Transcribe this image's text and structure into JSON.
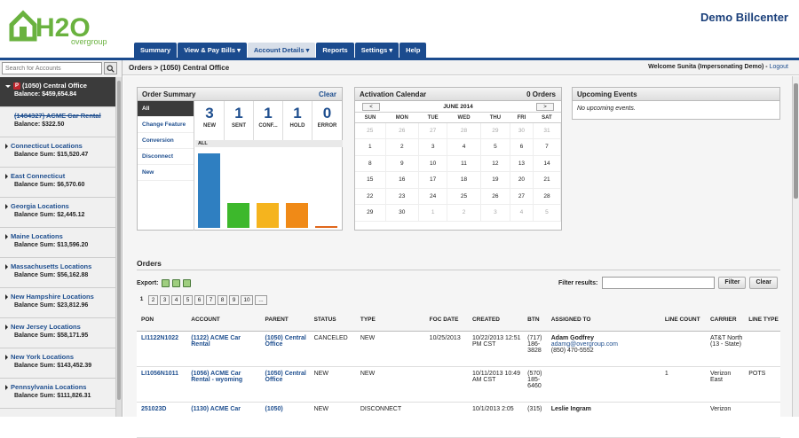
{
  "header": {
    "logo_text": "H2O",
    "logo_sub": "overgroup",
    "title": "Demo Billcenter"
  },
  "nav": {
    "tabs": [
      "Summary",
      "View & Pay Bills ▾",
      "Account Details ▾",
      "Reports",
      "Settings ▾",
      "Help"
    ],
    "active": "Account Details ▾"
  },
  "sidebar": {
    "search_placeholder": "Search for Accounts",
    "accounts": [
      {
        "name": "(1050) Central Office",
        "balance": "Balance: $459,654.84",
        "flag": "P",
        "selected": true
      },
      {
        "name": "(1484327) ACME Car Rental",
        "balance": "Balance: $322.50",
        "struck": true
      },
      {
        "name": "Connecticut Locations",
        "balance": "Balance Sum: $15,520.47"
      },
      {
        "name": "East Connecticut",
        "balance": "Balance Sum: $6,570.60"
      },
      {
        "name": "Georgia Locations",
        "balance": "Balance Sum: $2,445.12"
      },
      {
        "name": "Maine Locations",
        "balance": "Balance Sum: $13,596.20"
      },
      {
        "name": "Massachusetts Locations",
        "balance": "Balance Sum: $56,162.88"
      },
      {
        "name": "New Hampshire Locations",
        "balance": "Balance Sum: $23,812.96"
      },
      {
        "name": "New Jersey Locations",
        "balance": "Balance Sum: $58,171.95"
      },
      {
        "name": "New York Locations",
        "balance": "Balance Sum: $143,452.39"
      },
      {
        "name": "Pennsylvania Locations",
        "balance": "Balance Sum: $111,826.31"
      }
    ]
  },
  "breadcrumb": {
    "text": "Orders > (1050) Central Office",
    "welcome": "Welcome Sunita (Impersonating Demo) -",
    "logout": "Logout"
  },
  "order_summary": {
    "title": "Order Summary",
    "clear": "Clear",
    "filters": [
      "All",
      "Change Feature",
      "Conversion",
      "Disconnect",
      "New"
    ],
    "stats": [
      {
        "count": "3",
        "label": "NEW"
      },
      {
        "count": "1",
        "label": "SENT"
      },
      {
        "count": "1",
        "label": "CONF..."
      },
      {
        "count": "1",
        "label": "HOLD"
      },
      {
        "count": "0",
        "label": "ERROR"
      }
    ],
    "all_label": "ALL"
  },
  "chart_data": {
    "type": "bar",
    "categories": [
      "NEW",
      "SENT",
      "CONF...",
      "HOLD",
      "ERROR"
    ],
    "values": [
      3,
      1,
      1,
      1,
      0
    ],
    "colors": [
      "#2f7fc1",
      "#3db82c",
      "#f5b41e",
      "#f08a17",
      "#e0671b"
    ],
    "ylim": [
      0,
      3
    ],
    "grid": false
  },
  "calendar": {
    "title": "Activation Calendar",
    "orders": "0 Orders",
    "month": "JUNE 2014",
    "prev": "<",
    "next": ">",
    "days": [
      "SUN",
      "MON",
      "TUE",
      "WED",
      "THU",
      "FRI",
      "SAT"
    ],
    "weeks": [
      [
        [
          "25",
          1
        ],
        [
          "26",
          1
        ],
        [
          "27",
          1
        ],
        [
          "28",
          1
        ],
        [
          "29",
          1
        ],
        [
          "30",
          1
        ],
        [
          "31",
          1
        ]
      ],
      [
        [
          "1",
          0
        ],
        [
          "2",
          0
        ],
        [
          "3",
          0
        ],
        [
          "4",
          0
        ],
        [
          "5",
          0
        ],
        [
          "6",
          0
        ],
        [
          "7",
          0
        ]
      ],
      [
        [
          "8",
          0
        ],
        [
          "9",
          0
        ],
        [
          "10",
          0
        ],
        [
          "11",
          0
        ],
        [
          "12",
          0
        ],
        [
          "13",
          0
        ],
        [
          "14",
          0
        ]
      ],
      [
        [
          "15",
          0
        ],
        [
          "16",
          0
        ],
        [
          "17",
          0
        ],
        [
          "18",
          0
        ],
        [
          "19",
          0
        ],
        [
          "20",
          0
        ],
        [
          "21",
          0
        ]
      ],
      [
        [
          "22",
          0
        ],
        [
          "23",
          0
        ],
        [
          "24",
          0
        ],
        [
          "25",
          0
        ],
        [
          "26",
          0
        ],
        [
          "27",
          0
        ],
        [
          "28",
          0
        ]
      ],
      [
        [
          "29",
          0
        ],
        [
          "30",
          0
        ],
        [
          "1",
          1
        ],
        [
          "2",
          1
        ],
        [
          "3",
          1
        ],
        [
          "4",
          1
        ],
        [
          "5",
          1
        ]
      ]
    ]
  },
  "events": {
    "title": "Upcoming Events",
    "empty": "No upcoming events."
  },
  "orders": {
    "title": "Orders",
    "export_label": "Export:",
    "filter_label": "Filter results:",
    "filter_btn": "Filter",
    "clear_btn": "Clear",
    "pages": [
      "1",
      "2",
      "3",
      "4",
      "5",
      "6",
      "7",
      "8",
      "9",
      "10",
      "..."
    ],
    "columns": [
      "PON",
      "ACCOUNT",
      "PARENT",
      "STATUS",
      "TYPE",
      "FOC DATE",
      "CREATED",
      "BTN",
      "ASSIGNED TO",
      "LINE COUNT",
      "CARRIER",
      "LINE TYPE"
    ],
    "rows": [
      {
        "pon": "LI1122N1022",
        "account": "(1122) ACME Car Rental",
        "parent": "(1050) Central Office",
        "status": "CANCELED",
        "type": "NEW",
        "foc": "10/25/2013",
        "created": "10/22/2013 12:51 PM CST",
        "btn": "(717) 186-3828",
        "assigned": "Adam Godfrey",
        "assigned_email": "adamg@overgroup.com",
        "assigned_phone": "(850) 470-5552",
        "line_count": "",
        "carrier": "AT&T North (13 - State)",
        "line_type": ""
      },
      {
        "pon": "LI1056N1011",
        "account": "(1056) ACME Car Rental - wyoming",
        "parent": "(1050) Central Office",
        "status": "NEW",
        "type": "NEW",
        "foc": "",
        "created": "10/11/2013 10:49 AM CST",
        "btn": "(570) 185-6460",
        "assigned": "",
        "assigned_email": "",
        "assigned_phone": "",
        "line_count": "1",
        "carrier": "Verizon East",
        "line_type": "POTS"
      },
      {
        "pon": "251023D",
        "account": "(1130) ACME Car",
        "parent": "(1050)",
        "status": "NEW",
        "type": "DISCONNECT",
        "foc": "",
        "created": "10/1/2013 2:05",
        "btn": "(315)",
        "assigned": "Leslie Ingram",
        "assigned_email": "",
        "assigned_phone": "",
        "line_count": "",
        "carrier": "Verizon",
        "line_type": ""
      }
    ]
  }
}
